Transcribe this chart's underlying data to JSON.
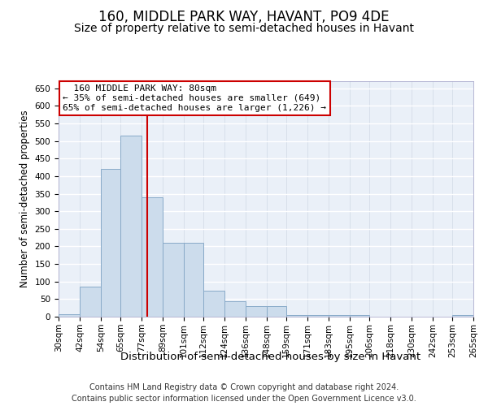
{
  "title": "160, MIDDLE PARK WAY, HAVANT, PO9 4DE",
  "subtitle": "Size of property relative to semi-detached houses in Havant",
  "xlabel": "Distribution of semi-detached houses by size in Havant",
  "ylabel": "Number of semi-detached properties",
  "footer_line1": "Contains HM Land Registry data © Crown copyright and database right 2024.",
  "footer_line2": "Contains public sector information licensed under the Open Government Licence v3.0.",
  "annotation_title": "160 MIDDLE PARK WAY: 80sqm",
  "annotation_line1": "← 35% of semi-detached houses are smaller (649)",
  "annotation_line2": "65% of semi-detached houses are larger (1,226) →",
  "bar_color": "#ccdcec",
  "bar_edge_color": "#88aac8",
  "reference_line_x": 80,
  "reference_line_color": "#cc0000",
  "ylim": [
    0,
    670
  ],
  "yticks": [
    0,
    50,
    100,
    150,
    200,
    250,
    300,
    350,
    400,
    450,
    500,
    550,
    600,
    650
  ],
  "bin_edges": [
    30,
    42,
    54,
    65,
    77,
    89,
    101,
    112,
    124,
    136,
    148,
    159,
    171,
    183,
    195,
    206,
    218,
    230,
    242,
    253,
    265
  ],
  "bin_heights": [
    8,
    85,
    420,
    515,
    340,
    210,
    210,
    75,
    45,
    30,
    30,
    5,
    5,
    5,
    5,
    0,
    0,
    0,
    0,
    5
  ],
  "bg_color": "#eaf0f8",
  "grid_color": "#d0d8e8",
  "title_fontsize": 12,
  "subtitle_fontsize": 10,
  "xlabel_fontsize": 9.5,
  "ylabel_fontsize": 8.5,
  "tick_fontsize": 7.5,
  "annot_fontsize": 8,
  "footer_fontsize": 7
}
